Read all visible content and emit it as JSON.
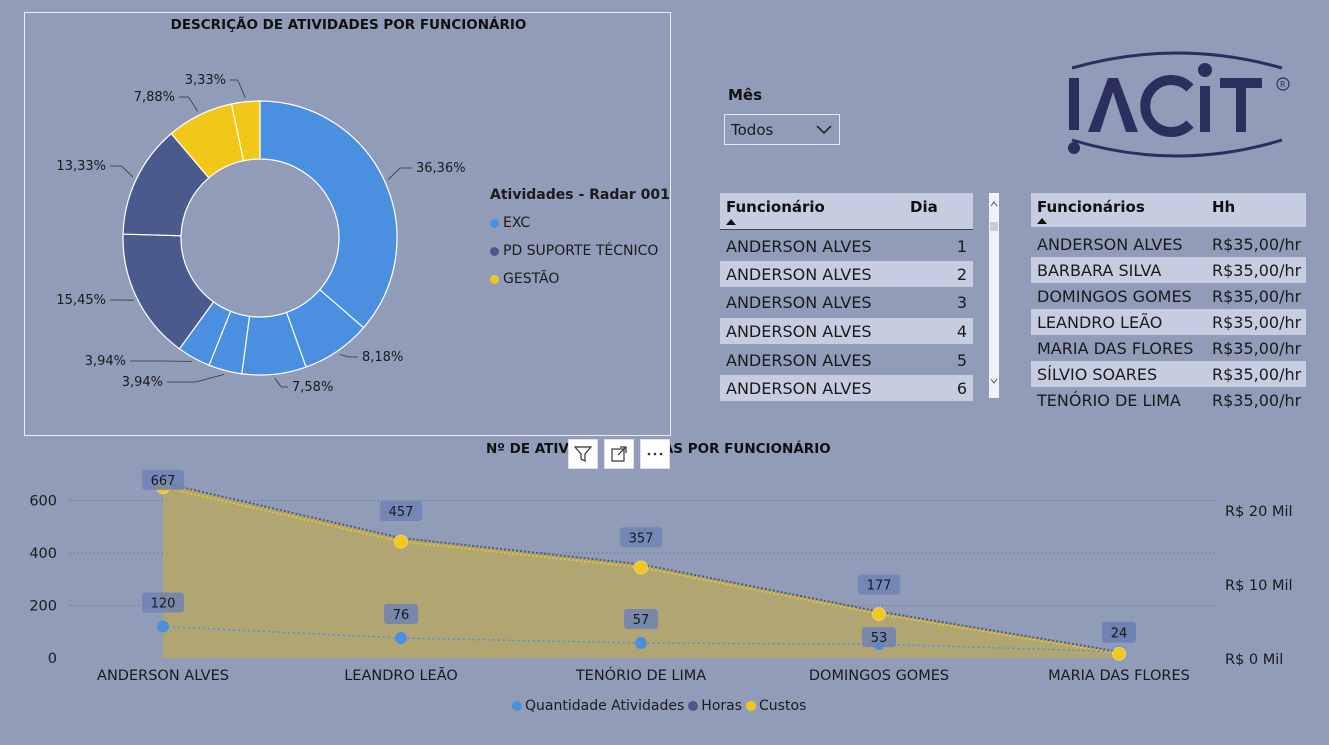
{
  "donut": {
    "title": "DESCRIÇÃO DE ATIVIDADES POR FUNCIONÁRIO",
    "legend_title": "Atividades - Radar 001",
    "legend": [
      {
        "label": "EXC",
        "color": "#4a8fe0"
      },
      {
        "label": "PD SUPORTE TÉCNICO",
        "color": "#4a5a8c"
      },
      {
        "label": "GESTÃO",
        "color": "#f2c818"
      }
    ]
  },
  "slicer": {
    "label": "Mês",
    "value": "Todos"
  },
  "table_dias": {
    "headers": [
      "Funcionário",
      "Dia"
    ],
    "rows": [
      [
        "ANDERSON ALVES",
        "1"
      ],
      [
        "ANDERSON ALVES",
        "2"
      ],
      [
        "ANDERSON ALVES",
        "3"
      ],
      [
        "ANDERSON ALVES",
        "4"
      ],
      [
        "ANDERSON ALVES",
        "5"
      ],
      [
        "ANDERSON ALVES",
        "6"
      ]
    ]
  },
  "table_hh": {
    "headers": [
      "Funcionários",
      "Hh"
    ],
    "rows": [
      [
        "ANDERSON ALVES",
        "R$35,00/hr"
      ],
      [
        "BARBARA SILVA",
        "R$35,00/hr"
      ],
      [
        "DOMINGOS GOMES",
        "R$35,00/hr"
      ],
      [
        "LEANDRO LEÃO",
        "R$35,00/hr"
      ],
      [
        "MARIA DAS FLORES",
        "R$35,00/hr"
      ],
      [
        "SÍLVIO SOARES",
        "R$35,00/hr"
      ],
      [
        "TENÓRIO DE LIMA",
        "R$35,00/hr"
      ]
    ]
  },
  "line_chart": {
    "title": "Nº DE ATIV",
    "title_suffix": "AS POR FUNCIONÁRIO"
  },
  "logo_text": "IACIT",
  "colors": {
    "background": "#919cb9",
    "exc": "#4a8fe0",
    "pd": "#4a5a8c",
    "gestao": "#f2c818",
    "area": "#b5a76a"
  },
  "chart_data": [
    {
      "type": "pie",
      "title": "DESCRIÇÃO DE ATIVIDADES POR FUNCIONÁRIO",
      "legend_title": "Atividades - Radar 001",
      "slices": [
        {
          "label": "36,36%",
          "value": 36.36,
          "category": "EXC"
        },
        {
          "label": "8,18%",
          "value": 8.18,
          "category": "EXC"
        },
        {
          "label": "7,58%",
          "value": 7.58,
          "category": "EXC"
        },
        {
          "label": "3,94%",
          "value": 3.94,
          "category": "EXC"
        },
        {
          "label": "3,94%",
          "value": 3.94,
          "category": "EXC"
        },
        {
          "label": "15,45%",
          "value": 15.45,
          "category": "PD SUPORTE TÉCNICO"
        },
        {
          "label": "13,33%",
          "value": 13.33,
          "category": "PD SUPORTE TÉCNICO"
        },
        {
          "label": "7,88%",
          "value": 7.88,
          "category": "GESTÃO"
        },
        {
          "label": "3,33%",
          "value": 3.33,
          "category": "GESTÃO"
        }
      ]
    },
    {
      "type": "line",
      "categories": [
        "ANDERSON ALVES",
        "LEANDRO LEÃO",
        "TENÓRIO DE LIMA",
        "DOMINGOS GOMES",
        "MARIA DAS FLORES"
      ],
      "series": [
        {
          "name": "Quantidade Atividades",
          "values": [
            120,
            76,
            57,
            53,
            24
          ],
          "axis": "left"
        },
        {
          "name": "Horas",
          "values": [
            667,
            457,
            357,
            177,
            24
          ],
          "axis": "left"
        },
        {
          "name": "Custos",
          "values": [
            23345,
            15995,
            12495,
            6195,
            840
          ],
          "axis": "right"
        }
      ],
      "left_ticks": [
        "0",
        "200",
        "400",
        "600"
      ],
      "ylim": [
        0,
        680
      ],
      "right_ticks": [
        "R$ 0 Mil",
        "R$ 10 Mil",
        "R$ 20 Mil"
      ],
      "right_ylim": [
        0,
        23800
      ],
      "data_labels": {
        "Quantidade Atividades": [
          "120",
          "76",
          "57",
          "53",
          "24"
        ],
        "Horas": [
          "667",
          "457",
          "357",
          "177",
          "24"
        ]
      },
      "legend": [
        "Quantidade Atividades",
        "Horas",
        "Custos"
      ],
      "legend_position": "bottom"
    }
  ]
}
